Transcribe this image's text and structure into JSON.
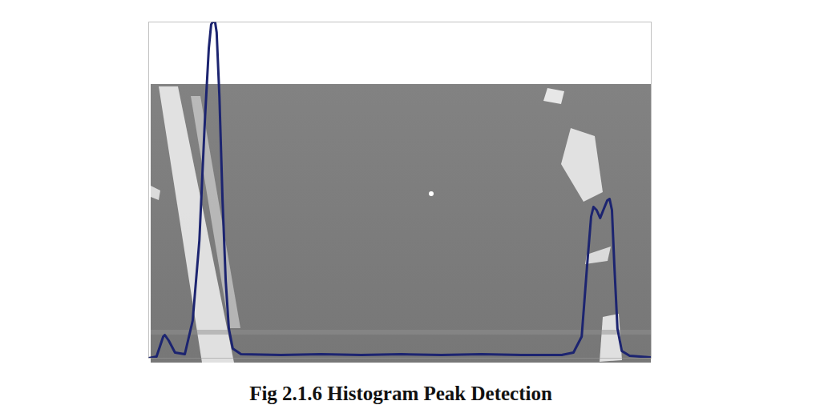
{
  "chart_data": {
    "type": "line",
    "title": "Fig 2.1.6 Histogram Peak Detection",
    "x": [
      0,
      20,
      37,
      41,
      51,
      67,
      92,
      112,
      129,
      143,
      153,
      159,
      163,
      169,
      173,
      180,
      188,
      196,
      204,
      214,
      235,
      337,
      439,
      541,
      643,
      745,
      847,
      949,
      1051,
      1081,
      1102,
      1116,
      1126,
      1132,
      1140,
      1149,
      1157,
      1167,
      1173,
      1179,
      1185,
      1193,
      1204,
      1224,
      1279
    ],
    "values": [
      0,
      2,
      27,
      29,
      22,
      7,
      5,
      47,
      147,
      297,
      387,
      417,
      420,
      420,
      407,
      327,
      197,
      97,
      37,
      12,
      5,
      4,
      5,
      4,
      5,
      4,
      5,
      4,
      4,
      7,
      27,
      117,
      177,
      189,
      185,
      175,
      185,
      197,
      199,
      185,
      117,
      37,
      9,
      3,
      1
    ],
    "color": "#1c2470",
    "xlim": [
      0,
      1279
    ],
    "ylim": [
      0,
      420
    ],
    "grid": false,
    "tick_labels": false
  }
}
